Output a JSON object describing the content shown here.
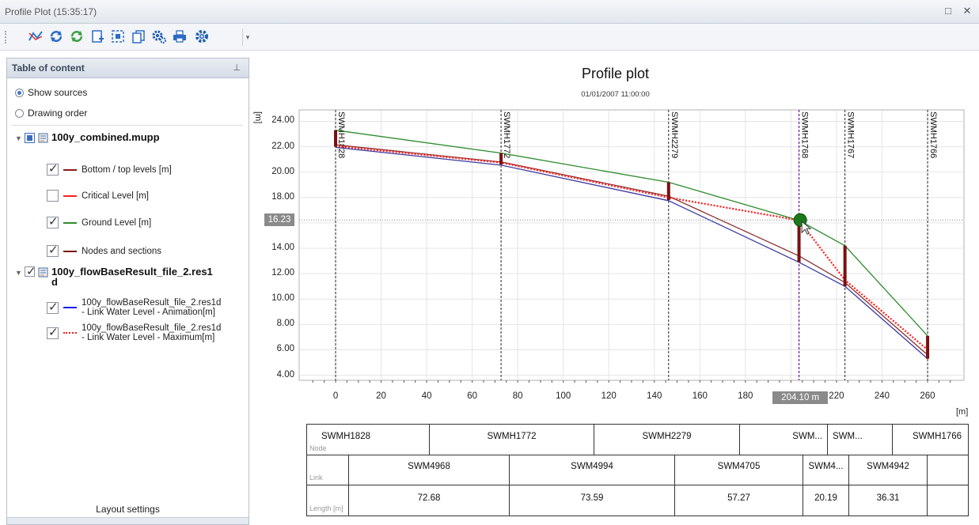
{
  "window": {
    "title": "Profile Plot (15:35:17)",
    "restore_glyph": "□",
    "close_glyph": "✕"
  },
  "toolbar": {
    "icons": [
      "profile-path-icon",
      "refresh-icon",
      "sync-icon",
      "add-page-icon",
      "zoom-extent-icon",
      "copy-icon",
      "gears-icon",
      "print-icon",
      "settings-icon"
    ],
    "overflow_glyph": "▾"
  },
  "toc": {
    "header": "Table of content",
    "pin_glyph": "⊥",
    "view_options": [
      {
        "label": "Show sources",
        "selected": true
      },
      {
        "label": "Drawing order",
        "selected": false
      }
    ],
    "groups": [
      {
        "label": "100y_combined.mupp",
        "checked": true,
        "items": [
          {
            "label": "Bottom / top levels [m]",
            "checked": true,
            "color": "#8b1a1a",
            "style": "solid"
          },
          {
            "label": "Critical Level [m]",
            "checked": false,
            "color": "#ff2020",
            "style": "solid"
          },
          {
            "label": "Ground Level [m]",
            "checked": true,
            "color": "#2e8b2e",
            "style": "solid"
          },
          {
            "label": "Nodes and sections",
            "checked": true,
            "color": "#7a1010",
            "style": "solid"
          }
        ]
      },
      {
        "label_line1": "100y_flowBaseResult_file_2.res1",
        "label_line2": "d",
        "checked": true,
        "items": [
          {
            "label_line1": "100y_flowBaseResult_file_2.res1d",
            "label_line2": "- Link Water Level - Animation[m]",
            "checked": true,
            "color": "#1a1aff",
            "style": "solid"
          },
          {
            "label_line1": "100y_flowBaseResult_file_2.res1d",
            "label_line2": "- Link Water Level - Maximum[m]",
            "checked": true,
            "color": "#ff1a1a",
            "style": "dotted"
          }
        ]
      }
    ],
    "footer": "Layout settings"
  },
  "plot": {
    "title": "Profile plot",
    "subtitle": "01/01/2007 11:00:00",
    "y_unit": "[m]",
    "x_unit": "[m]",
    "cursor_y_label": "16.23",
    "cursor_x_label": "204.10 m",
    "cursor": {
      "x": 204.1,
      "y": 16.23
    }
  },
  "chart_data": {
    "type": "line",
    "title": "Profile plot",
    "subtitle": "01/01/2007 11:00:00",
    "xlabel": "[m]",
    "ylabel": "[m]",
    "xlim": [
      -16,
      276
    ],
    "ylim": [
      3.6,
      24.9
    ],
    "x_ticks": [
      0,
      20,
      40,
      60,
      80,
      100,
      120,
      140,
      160,
      180,
      200,
      220,
      240,
      260
    ],
    "y_ticks": [
      4.0,
      6.0,
      8.0,
      10.0,
      12.0,
      14.0,
      16.0,
      18.0,
      20.0,
      22.0,
      24.0
    ],
    "grid": true,
    "nodes": [
      {
        "name": "SWMH1828",
        "x": 0,
        "bottom": 22.0,
        "top": 23.3
      },
      {
        "name": "SWMH1772",
        "x": 72.68,
        "bottom": 20.6,
        "top": 21.5
      },
      {
        "name": "SWMH2279",
        "x": 146.27,
        "bottom": 17.8,
        "top": 19.2
      },
      {
        "name": "SWMH1768",
        "x": 203.54,
        "bottom": 12.9,
        "top": 16.2
      },
      {
        "name": "SWMH1767",
        "x": 223.73,
        "bottom": 11.0,
        "top": 14.2
      },
      {
        "name": "SWMH1766",
        "x": 260.04,
        "bottom": 5.3,
        "top": 7.1
      }
    ],
    "series": [
      {
        "name": "Ground Level [m]",
        "color": "#2e8b2e",
        "style": "solid",
        "values": [
          23.3,
          21.5,
          19.2,
          16.2,
          14.2,
          7.1
        ]
      },
      {
        "name": "Bottom / top levels [m]",
        "color": "#8b3030",
        "style": "solid",
        "values": [
          22.15,
          20.8,
          18.1,
          13.4,
          11.3,
          5.6
        ]
      },
      {
        "name": "100y_flowBaseResult_file_2.res1d - Link Water Level - Animation[m]",
        "color": "#3a3aa0",
        "style": "solid",
        "values": [
          21.95,
          20.55,
          17.75,
          12.9,
          11.0,
          5.3
        ]
      },
      {
        "name": "100y_flowBaseResult_file_2.res1d - Link Water Level - Maximum[m]",
        "color": "#ff1a1a",
        "style": "dotted",
        "values": [
          22.05,
          20.75,
          18.0,
          16.2,
          11.5,
          6.0
        ]
      }
    ]
  },
  "profile_table": {
    "row_labels": [
      "Node",
      "Link",
      "Length [m]"
    ],
    "nodes": [
      "SWMH1828",
      "SWMH1772",
      "SWMH2279",
      "SWM...",
      "SWM...",
      "SWMH1766"
    ],
    "links": [
      "SWM4968",
      "SWM4994",
      "SWM4705",
      "SWM4...",
      "SWM4942"
    ],
    "lengths": [
      "72.68",
      "73.59",
      "57.27",
      "20.19",
      "36.31"
    ]
  }
}
